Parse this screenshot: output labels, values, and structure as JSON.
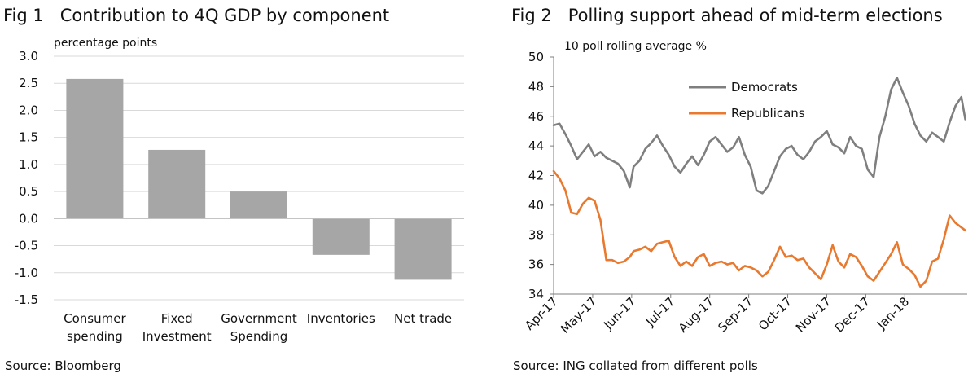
{
  "figures": [
    {
      "fig_label": "Fig 1",
      "title": "Contribution to 4Q GDP by component",
      "unit_label": "percentage points",
      "source": "Source: Bloomberg"
    },
    {
      "fig_label": "Fig 2",
      "title": "Polling support ahead of mid-term elections",
      "unit_label": "10 poll rolling average %",
      "source": "Source: ING collated from different polls"
    }
  ],
  "chart_data": [
    {
      "type": "bar",
      "title": "Contribution to 4Q GDP by component",
      "ylabel": "percentage points",
      "categories": [
        [
          "Consumer",
          "spending"
        ],
        [
          "Fixed",
          "Investment"
        ],
        [
          "Government",
          "Spending"
        ],
        [
          "Inventories"
        ],
        [
          "Net trade"
        ]
      ],
      "values": [
        2.58,
        1.27,
        0.5,
        -0.67,
        -1.13
      ],
      "ylim": [
        -1.5,
        3.0
      ],
      "yticks": [
        "3.0",
        "2.5",
        "2.0",
        "1.5",
        "1.0",
        "0.5",
        "0.0",
        "-0.5",
        "-1.0",
        "-1.5"
      ],
      "bar_color": "#a6a6a6",
      "grid": true
    },
    {
      "type": "line",
      "title": "Polling support ahead of mid-term elections",
      "ylabel": "10 poll rolling average %",
      "ylim": [
        34,
        50
      ],
      "yticks": [
        "50",
        "48",
        "46",
        "44",
        "42",
        "40",
        "38",
        "36",
        "34"
      ],
      "x_ticks": [
        "Apr-17",
        "May-17",
        "Jun-17",
        "Jul-17",
        "Aug-17",
        "Sep-17",
        "Oct-17",
        "Nov-17",
        "Dec-17",
        "Jan-18"
      ],
      "x_range_months": [
        0,
        10.6
      ],
      "grid": false,
      "legend": "top-left",
      "series": [
        {
          "name": "Democrats",
          "color": "#7f7f7f",
          "x": [
            0,
            0.15,
            0.3,
            0.45,
            0.6,
            0.75,
            0.9,
            1.05,
            1.2,
            1.35,
            1.5,
            1.65,
            1.8,
            1.95,
            2.05,
            2.2,
            2.35,
            2.5,
            2.65,
            2.8,
            2.95,
            3.1,
            3.25,
            3.4,
            3.55,
            3.7,
            3.85,
            4.0,
            4.15,
            4.3,
            4.45,
            4.6,
            4.75,
            4.9,
            5.05,
            5.2,
            5.35,
            5.5,
            5.65,
            5.8,
            5.95,
            6.1,
            6.25,
            6.4,
            6.55,
            6.7,
            6.85,
            7.0,
            7.15,
            7.3,
            7.45,
            7.6,
            7.75,
            7.9,
            8.05,
            8.2,
            8.35,
            8.5,
            8.65,
            8.8,
            8.95,
            9.1,
            9.25,
            9.4,
            9.55,
            9.7,
            9.85,
            10.0,
            10.15,
            10.3,
            10.45,
            10.55
          ],
          "values": [
            45.4,
            45.5,
            44.8,
            44.0,
            43.1,
            43.6,
            44.1,
            43.3,
            43.6,
            43.2,
            43.0,
            42.8,
            42.3,
            41.2,
            42.6,
            43.0,
            43.8,
            44.2,
            44.7,
            44.0,
            43.4,
            42.6,
            42.2,
            42.8,
            43.3,
            42.7,
            43.4,
            44.3,
            44.6,
            44.1,
            43.6,
            43.9,
            44.6,
            43.4,
            42.6,
            41.0,
            40.8,
            41.3,
            42.3,
            43.3,
            43.8,
            44.0,
            43.4,
            43.1,
            43.6,
            44.3,
            44.6,
            45.0,
            44.1,
            43.9,
            43.5,
            44.6,
            44.0,
            43.8,
            42.4,
            41.9,
            44.6,
            46.0,
            47.8,
            48.6,
            47.6,
            46.7,
            45.5,
            44.7,
            44.3,
            44.9,
            44.6,
            44.3,
            45.6,
            46.7,
            47.3,
            45.8
          ]
        },
        {
          "name": "Republicans",
          "color": "#e8792f",
          "x": [
            0,
            0.15,
            0.3,
            0.45,
            0.6,
            0.75,
            0.9,
            1.05,
            1.2,
            1.35,
            1.5,
            1.65,
            1.8,
            1.95,
            2.05,
            2.2,
            2.35,
            2.5,
            2.65,
            2.8,
            2.95,
            3.1,
            3.25,
            3.4,
            3.55,
            3.7,
            3.85,
            4.0,
            4.15,
            4.3,
            4.45,
            4.6,
            4.75,
            4.9,
            5.05,
            5.2,
            5.35,
            5.5,
            5.65,
            5.8,
            5.95,
            6.1,
            6.25,
            6.4,
            6.55,
            6.7,
            6.85,
            7.0,
            7.15,
            7.3,
            7.45,
            7.6,
            7.75,
            7.9,
            8.05,
            8.2,
            8.35,
            8.5,
            8.65,
            8.8,
            8.95,
            9.1,
            9.25,
            9.4,
            9.55,
            9.7,
            9.85,
            10.0,
            10.15,
            10.3,
            10.45,
            10.55
          ],
          "values": [
            42.3,
            41.8,
            41.0,
            39.5,
            39.4,
            40.1,
            40.5,
            40.3,
            39.0,
            36.3,
            36.3,
            36.1,
            36.2,
            36.5,
            36.9,
            37.0,
            37.2,
            36.9,
            37.4,
            37.5,
            37.6,
            36.5,
            35.9,
            36.2,
            35.9,
            36.5,
            36.7,
            35.9,
            36.1,
            36.2,
            36.0,
            36.1,
            35.6,
            35.9,
            35.8,
            35.6,
            35.2,
            35.5,
            36.3,
            37.2,
            36.5,
            36.6,
            36.3,
            36.4,
            35.8,
            35.4,
            35.0,
            36.0,
            37.3,
            36.2,
            35.8,
            36.7,
            36.5,
            35.9,
            35.2,
            34.9,
            35.5,
            36.1,
            36.7,
            37.5,
            36.0,
            35.7,
            35.3,
            34.5,
            34.9,
            36.2,
            36.4,
            37.7,
            39.3,
            38.8,
            38.5,
            38.3
          ]
        }
      ]
    }
  ]
}
